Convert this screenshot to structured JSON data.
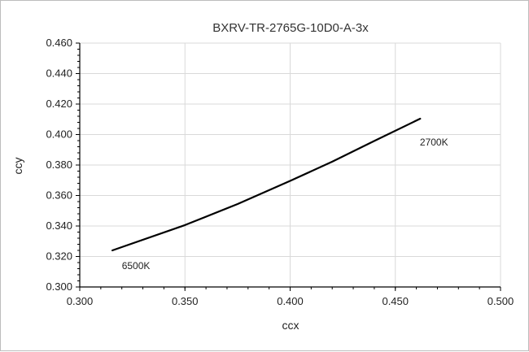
{
  "chart_data": {
    "type": "line",
    "title": "BXRV-TR-2765G-10D0-A-3x",
    "xlabel": "ccx",
    "ylabel": "ccy",
    "xlim": [
      0.3,
      0.5
    ],
    "ylim": [
      0.3,
      0.46
    ],
    "x_ticks": [
      "0.300",
      "0.350",
      "0.400",
      "0.450",
      "0.500"
    ],
    "y_ticks": [
      "0.300",
      "0.320",
      "0.340",
      "0.360",
      "0.380",
      "0.400",
      "0.420",
      "0.440",
      "0.460"
    ],
    "grid": true,
    "series": [
      {
        "color": "#000000",
        "x": [
          0.3155,
          0.35,
          0.375,
          0.4,
          0.42,
          0.44,
          0.4618
        ],
        "y": [
          0.324,
          0.3406,
          0.3544,
          0.3696,
          0.3822,
          0.3958,
          0.4104
        ]
      }
    ],
    "annotations": [
      {
        "text": "6500K",
        "x": 0.3155,
        "y": 0.324
      },
      {
        "text": "2700K",
        "x": 0.4618,
        "y": 0.4104
      }
    ]
  }
}
